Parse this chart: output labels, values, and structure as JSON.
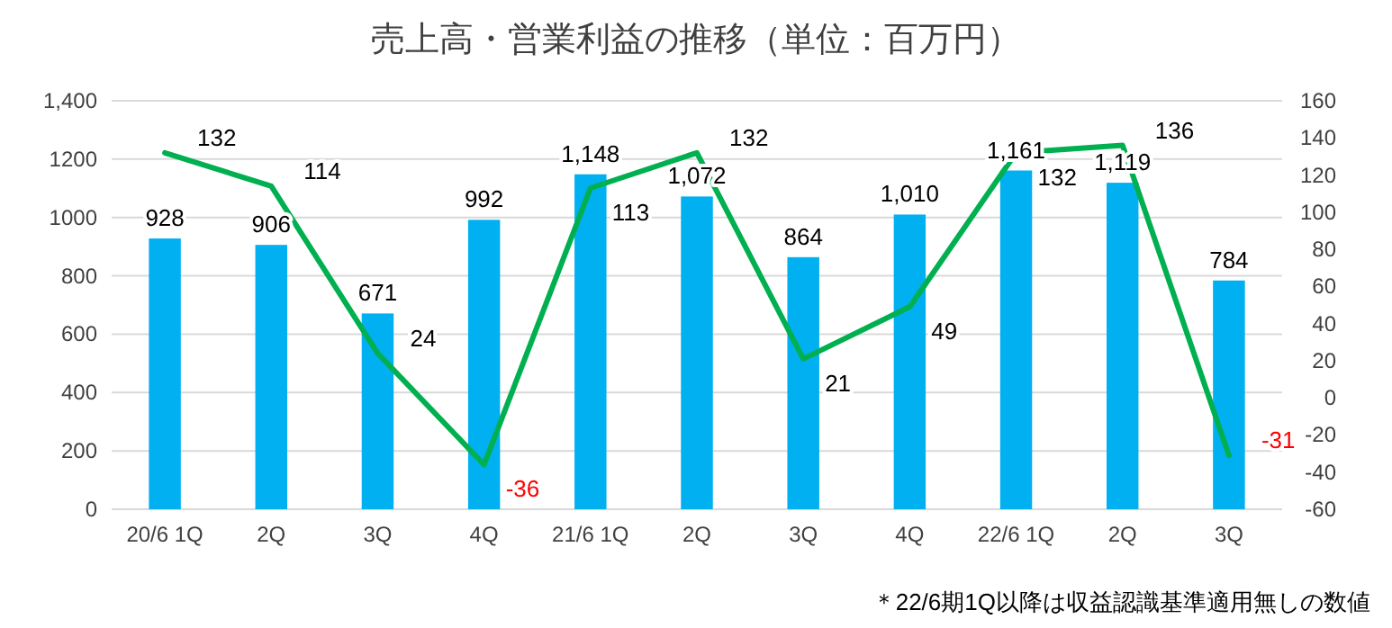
{
  "chart_data": {
    "type": "bar",
    "title": "売上高・営業利益の推移（単位：百万円）",
    "categories": [
      "20/6 1Q",
      "2Q",
      "3Q",
      "4Q",
      "21/6 1Q",
      "2Q",
      "3Q",
      "4Q",
      "22/6 1Q",
      "2Q",
      "3Q"
    ],
    "series": [
      {
        "color": "#00b0f0",
        "values": [
          928,
          906,
          671,
          992,
          1148,
          1072,
          864,
          1010,
          1161,
          1119,
          784
        ],
        "value_labels": [
          "928",
          "906",
          "671",
          "992",
          "1,148",
          "1,072",
          "864",
          "1,010",
          "1,161",
          "1,119",
          "784"
        ]
      },
      {
        "type": "line",
        "axis": "y2",
        "color": "#00b050",
        "values": [
          132,
          114,
          24,
          -36,
          113,
          132,
          21,
          49,
          132,
          136,
          -31
        ],
        "value_labels": [
          "132",
          "114",
          "24",
          "-36",
          "113",
          "132",
          "21",
          "49",
          "132",
          "136",
          "-31"
        ]
      }
    ],
    "ylim": [
      0,
      1400
    ],
    "yticks": [
      0,
      200,
      400,
      600,
      800,
      1000,
      1200,
      {
        "value": 1400,
        "label": "1,400"
      }
    ],
    "y2lim": [
      -60,
      160
    ],
    "y2ticks": [
      -60,
      -40,
      -20,
      0,
      20,
      40,
      60,
      80,
      100,
      120,
      140,
      160
    ],
    "grid": "y",
    "annotations": [
      "＊22/6期1Q以降は収益認識基準適用無しの数値"
    ]
  }
}
